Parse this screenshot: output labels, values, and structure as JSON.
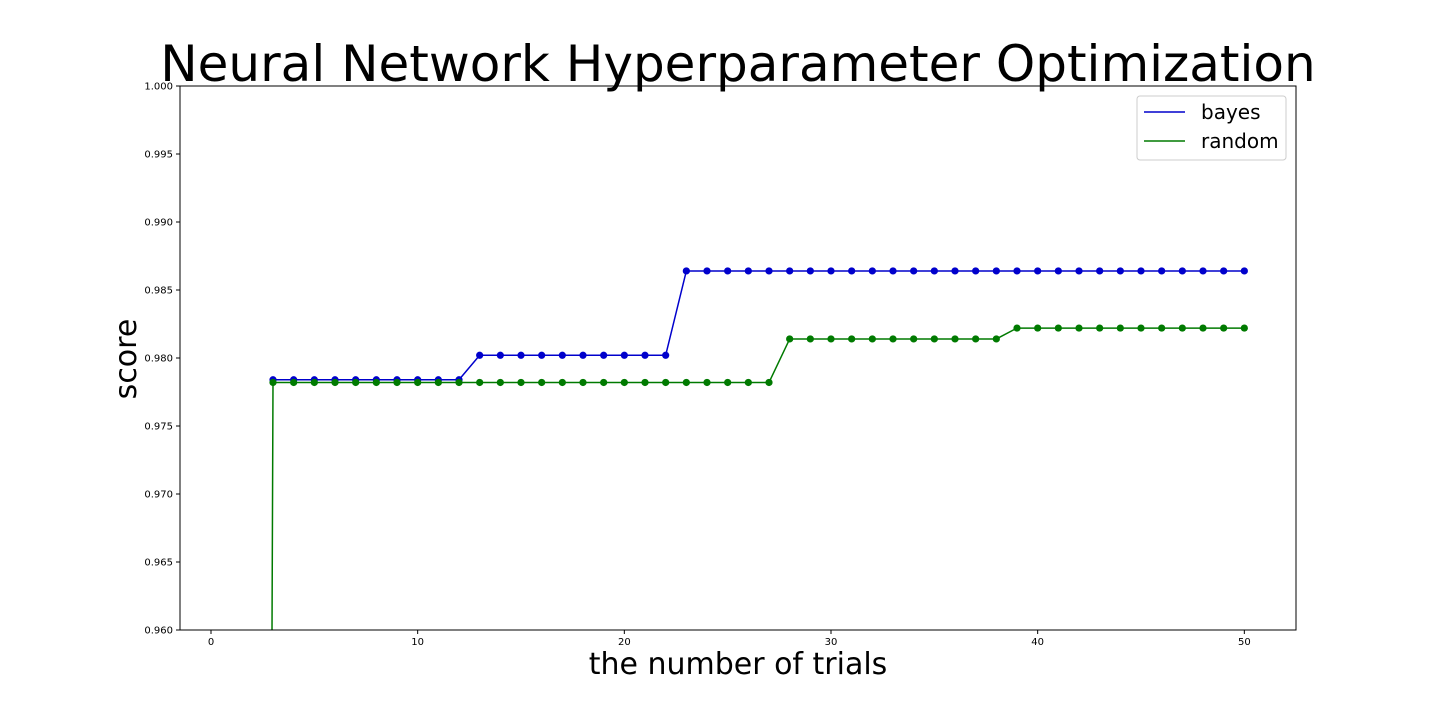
{
  "chart_data": {
    "type": "line",
    "title": "Neural Network Hyperparameter Optimization",
    "xlabel": "the number of trials",
    "ylabel": "score",
    "xlim": [
      -1.5,
      52.5
    ],
    "ylim": [
      0.96,
      1.0
    ],
    "xticks": [
      0,
      10,
      20,
      30,
      40,
      50
    ],
    "yticks": [
      0.96,
      0.965,
      0.97,
      0.975,
      0.98,
      0.985,
      0.99,
      0.995,
      1.0
    ],
    "ytick_labels": [
      "0.960",
      "0.965",
      "0.970",
      "0.975",
      "0.980",
      "0.985",
      "0.990",
      "0.995",
      "1.000"
    ],
    "grid": false,
    "legend_position": "top-right",
    "series": [
      {
        "name": "bayes",
        "color": "#0000cc",
        "x": [
          3,
          4,
          5,
          6,
          7,
          8,
          9,
          10,
          11,
          12,
          13,
          14,
          15,
          16,
          17,
          18,
          19,
          20,
          21,
          22,
          23,
          24,
          25,
          26,
          27,
          28,
          29,
          30,
          31,
          32,
          33,
          34,
          35,
          36,
          37,
          38,
          39,
          40,
          41,
          42,
          43,
          44,
          45,
          46,
          47,
          48,
          49,
          50
        ],
        "y": [
          0.9784,
          0.9784,
          0.9784,
          0.9784,
          0.9784,
          0.9784,
          0.9784,
          0.9784,
          0.9784,
          0.9784,
          0.9802,
          0.9802,
          0.9802,
          0.9802,
          0.9802,
          0.9802,
          0.9802,
          0.9802,
          0.9802,
          0.9802,
          0.9864,
          0.9864,
          0.9864,
          0.9864,
          0.9864,
          0.9864,
          0.9864,
          0.9864,
          0.9864,
          0.9864,
          0.9864,
          0.9864,
          0.9864,
          0.9864,
          0.9864,
          0.9864,
          0.9864,
          0.9864,
          0.9864,
          0.9864,
          0.9864,
          0.9864,
          0.9864,
          0.9864,
          0.9864,
          0.9864,
          0.9864,
          0.9864
        ]
      },
      {
        "name": "random",
        "color": "#007a00",
        "x": [
          3,
          4,
          5,
          6,
          7,
          8,
          9,
          10,
          11,
          12,
          13,
          14,
          15,
          16,
          17,
          18,
          19,
          20,
          21,
          22,
          23,
          24,
          25,
          26,
          27,
          28,
          29,
          30,
          31,
          32,
          33,
          34,
          35,
          36,
          37,
          38,
          39,
          40,
          41,
          42,
          43,
          44,
          45,
          46,
          47,
          48,
          49,
          50
        ],
        "y": [
          0.9782,
          0.9782,
          0.9782,
          0.9782,
          0.9782,
          0.9782,
          0.9782,
          0.9782,
          0.9782,
          0.9782,
          0.9782,
          0.9782,
          0.9782,
          0.9782,
          0.9782,
          0.9782,
          0.9782,
          0.9782,
          0.9782,
          0.9782,
          0.9782,
          0.9782,
          0.9782,
          0.9782,
          0.9782,
          0.9814,
          0.9814,
          0.9814,
          0.9814,
          0.9814,
          0.9814,
          0.9814,
          0.9814,
          0.9814,
          0.9814,
          0.9814,
          0.9822,
          0.9822,
          0.9822,
          0.9822,
          0.9822,
          0.9822,
          0.9822,
          0.9822,
          0.9822,
          0.9822,
          0.9822,
          0.9822
        ]
      }
    ]
  }
}
